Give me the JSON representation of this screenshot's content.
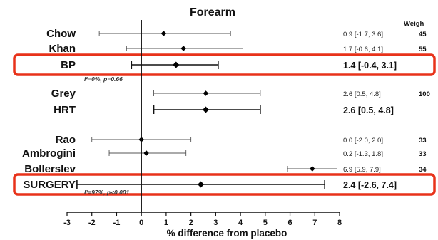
{
  "chart_data": {
    "type": "forest",
    "title": "Forearm",
    "xlabel": "% difference from placebo",
    "xlim": [
      -3,
      8
    ],
    "x_ticks": [
      -3,
      -2,
      -1,
      0,
      1,
      2,
      3,
      4,
      5,
      6,
      7,
      8
    ],
    "weight_header": "Weigh",
    "highlight_color": "#e8321a",
    "groups": [
      {
        "rows": [
          {
            "label": "Chow",
            "estimate": 0.9,
            "lower": -1.7,
            "upper": 3.6,
            "ci_text": "0.9 [-1.7, 3.6]",
            "weight": "45",
            "pooled": false
          },
          {
            "label": "Khan",
            "estimate": 1.7,
            "lower": -0.6,
            "upper": 4.1,
            "ci_text": "1.7 [-0.6, 4.1]",
            "weight": "55",
            "pooled": false
          },
          {
            "label": "BP",
            "estimate": 1.4,
            "lower": -0.4,
            "upper": 3.1,
            "ci_text": "1.4 [-0.4, 3.1]",
            "weight": "",
            "pooled": true,
            "highlight": true
          }
        ],
        "heterogeneity": "I²=0%, p=0.66"
      },
      {
        "rows": [
          {
            "label": "Grey",
            "estimate": 2.6,
            "lower": 0.5,
            "upper": 4.8,
            "ci_text": "2.6 [0.5, 4.8]",
            "weight": "100",
            "pooled": false
          },
          {
            "label": "HRT",
            "estimate": 2.6,
            "lower": 0.5,
            "upper": 4.8,
            "ci_text": "2.6 [0.5, 4.8]",
            "weight": "",
            "pooled": true,
            "highlight": false
          }
        ],
        "heterogeneity": ""
      },
      {
        "rows": [
          {
            "label": "Rao",
            "estimate": 0.0,
            "lower": -2.0,
            "upper": 2.0,
            "ci_text": "0.0 [-2.0, 2.0]",
            "weight": "33",
            "pooled": false
          },
          {
            "label": "Ambrogini",
            "estimate": 0.2,
            "lower": -1.3,
            "upper": 1.8,
            "ci_text": "0.2 [-1.3, 1.8]",
            "weight": "33",
            "pooled": false
          },
          {
            "label": "Bollerslev",
            "estimate": 6.9,
            "lower": 5.9,
            "upper": 7.9,
            "ci_text": "6.9 [5.9, 7.9]",
            "weight": "34",
            "pooled": false
          },
          {
            "label": "SURGERY",
            "estimate": 2.4,
            "lower": -2.6,
            "upper": 7.4,
            "ci_text": "2.4 [-2.6, 7.4]",
            "weight": "",
            "pooled": true,
            "highlight": true
          }
        ],
        "heterogeneity": "I²=97%, p<0.001"
      }
    ]
  }
}
